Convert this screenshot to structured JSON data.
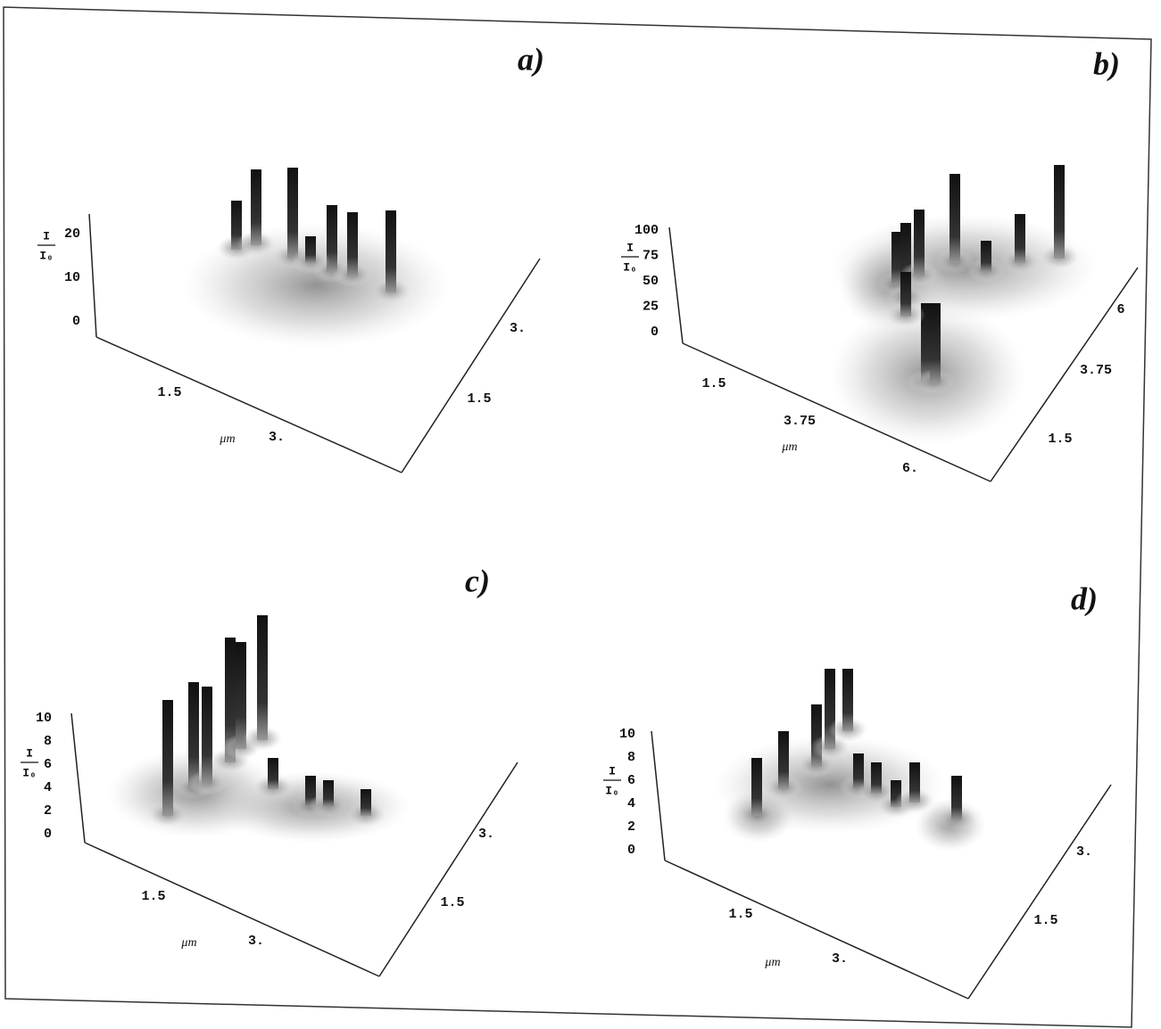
{
  "panels": [
    {
      "label": "a)",
      "z_label_top": "I",
      "z_label_bottom": "I₀",
      "z_ticks": [
        "0",
        "10",
        "20"
      ],
      "x_ticks": [
        "1.5",
        "3."
      ],
      "x_unit": "μm",
      "y_ticks": [
        "3.",
        "1.5"
      ]
    },
    {
      "label": "b)",
      "z_label_top": "I",
      "z_label_bottom": "I₀",
      "z_ticks": [
        "0",
        "25",
        "50",
        "75",
        "100"
      ],
      "x_ticks": [
        "1.5",
        "3.75",
        "6."
      ],
      "x_unit": "μm",
      "y_ticks": [
        "6",
        "3.75",
        "1.5"
      ]
    },
    {
      "label": "c)",
      "z_label_top": "I",
      "z_label_bottom": "I₀",
      "z_ticks": [
        "0",
        "2",
        "4",
        "6",
        "8",
        "10"
      ],
      "x_ticks": [
        "1.5",
        "3."
      ],
      "x_unit": "μm",
      "y_ticks": [
        "3.",
        "1.5"
      ]
    },
    {
      "label": "d)",
      "z_label_top": "I",
      "z_label_bottom": "I₀",
      "z_ticks": [
        "0",
        "2",
        "4",
        "6",
        "8",
        "10"
      ],
      "x_ticks": [
        "1.5",
        "3."
      ],
      "x_unit": "μm",
      "y_ticks": [
        "3.",
        "1.5"
      ]
    }
  ]
}
